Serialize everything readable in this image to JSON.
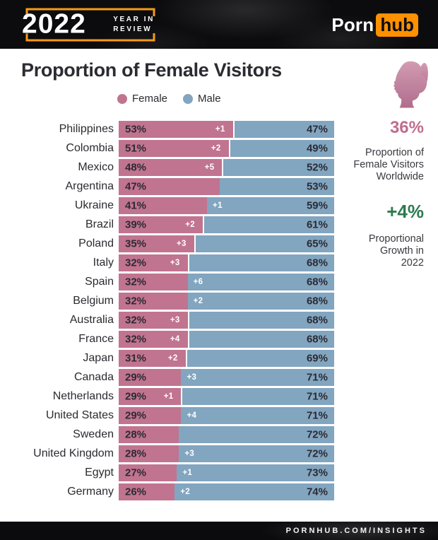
{
  "header": {
    "badge_year": "2022",
    "badge_line1": "YEAR IN",
    "badge_line2": "REVIEW",
    "brand_part1": "Porn",
    "brand_part2": "hub"
  },
  "title": "Proportion of Female Visitors",
  "legend": {
    "female": "Female",
    "male": "Male"
  },
  "stats": {
    "worldwide_value": "36%",
    "worldwide_caption": [
      "Proportion of",
      "Female Visitors",
      "Worldwide"
    ],
    "growth_value": "+4%",
    "growth_caption": [
      "Proportional",
      "Growth in",
      "2022"
    ]
  },
  "footer": {
    "url": "PORNHUB.COM/INSIGHTS"
  },
  "colors": {
    "female": "#c1748f",
    "male": "#82a5c0",
    "accent_orange": "#ff9000",
    "bracket_orange": "#f79b15",
    "stat_pink": "#c06d8f",
    "stat_green": "#2e7b50"
  },
  "chart_data": {
    "type": "bar",
    "orientation": "horizontal-stacked",
    "title": "Proportion of Female Visitors",
    "legend": [
      "Female",
      "Male"
    ],
    "unit": "%",
    "xlim": [
      0,
      100
    ],
    "note": "growth = proportional change of female share vs prior year; growth_side = segment in which the growth label is printed",
    "rows": [
      {
        "country": "Philippines",
        "female": 53,
        "male": 47,
        "growth": "+1",
        "growth_side": "female"
      },
      {
        "country": "Colombia",
        "female": 51,
        "male": 49,
        "growth": "+2",
        "growth_side": "female"
      },
      {
        "country": "Mexico",
        "female": 48,
        "male": 52,
        "growth": "+5",
        "growth_side": "female"
      },
      {
        "country": "Argentina",
        "female": 47,
        "male": 53,
        "growth": null,
        "growth_side": null
      },
      {
        "country": "Ukraine",
        "female": 41,
        "male": 59,
        "growth": "+1",
        "growth_side": "male"
      },
      {
        "country": "Brazil",
        "female": 39,
        "male": 61,
        "growth": "+2",
        "growth_side": "female"
      },
      {
        "country": "Poland",
        "female": 35,
        "male": 65,
        "growth": "+3",
        "growth_side": "female"
      },
      {
        "country": "Italy",
        "female": 32,
        "male": 68,
        "growth": "+3",
        "growth_side": "female"
      },
      {
        "country": "Spain",
        "female": 32,
        "male": 68,
        "growth": "+6",
        "growth_side": "male"
      },
      {
        "country": "Belgium",
        "female": 32,
        "male": 68,
        "growth": "+2",
        "growth_side": "male"
      },
      {
        "country": "Australia",
        "female": 32,
        "male": 68,
        "growth": "+3",
        "growth_side": "female"
      },
      {
        "country": "France",
        "female": 32,
        "male": 68,
        "growth": "+4",
        "growth_side": "female"
      },
      {
        "country": "Japan",
        "female": 31,
        "male": 69,
        "growth": "+2",
        "growth_side": "female"
      },
      {
        "country": "Canada",
        "female": 29,
        "male": 71,
        "growth": "+3",
        "growth_side": "male"
      },
      {
        "country": "Netherlands",
        "female": 29,
        "male": 71,
        "growth": "+1",
        "growth_side": "female"
      },
      {
        "country": "United States",
        "female": 29,
        "male": 71,
        "growth": "+4",
        "growth_side": "male"
      },
      {
        "country": "Sweden",
        "female": 28,
        "male": 72,
        "growth": null,
        "growth_side": null
      },
      {
        "country": "United Kingdom",
        "female": 28,
        "male": 72,
        "growth": "+3",
        "growth_side": "male"
      },
      {
        "country": "Egypt",
        "female": 27,
        "male": 73,
        "growth": "+1",
        "growth_side": "male"
      },
      {
        "country": "Germany",
        "female": 26,
        "male": 74,
        "growth": "+2",
        "growth_side": "male"
      }
    ]
  }
}
